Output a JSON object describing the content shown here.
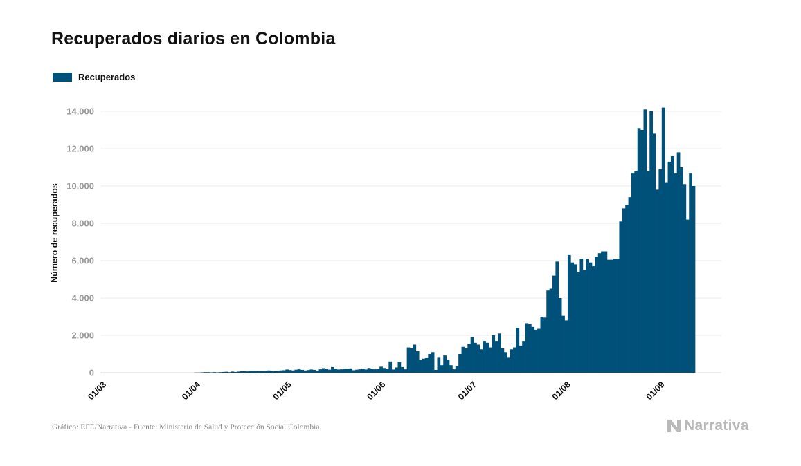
{
  "header": {
    "title": "Recuperados diarios en Colombia"
  },
  "legend": {
    "label": "Recuperados",
    "color": "#00517a"
  },
  "footer": {
    "source": "Gráfico: EFE/Narrativa - Fuente: Ministerio de Salud y Protección Social Colombia",
    "brand": "Narrativa",
    "brand_icon": "narrativa-logo-icon"
  },
  "chart_data": {
    "type": "bar",
    "title": "Recuperados diarios en Colombia",
    "xlabel": "",
    "ylabel": "Número de recuperados",
    "x_start": "2020-03-01",
    "ylim": [
      0,
      14000
    ],
    "y_ticks": [
      0,
      2000,
      4000,
      6000,
      8000,
      10000,
      12000,
      14000
    ],
    "y_tick_labels": [
      "0",
      "2.000",
      "4.000",
      "6.000",
      "8.000",
      "10.000",
      "12.000",
      "14.000"
    ],
    "x_ticks": [
      {
        "label": "01/03",
        "date": "2020-03-01"
      },
      {
        "label": "01/04",
        "date": "2020-04-01"
      },
      {
        "label": "01/05",
        "date": "2020-05-01"
      },
      {
        "label": "01/06",
        "date": "2020-06-01"
      },
      {
        "label": "01/07",
        "date": "2020-07-01"
      },
      {
        "label": "01/08",
        "date": "2020-08-01"
      },
      {
        "label": "01/09",
        "date": "2020-09-01"
      }
    ],
    "grid": true,
    "legend_position": "top-left",
    "series": [
      {
        "name": "Recuperados",
        "color": "#00517a",
        "values": [
          0,
          0,
          0,
          0,
          0,
          0,
          0,
          0,
          0,
          0,
          0,
          0,
          0,
          0,
          0,
          0,
          0,
          0,
          0,
          0,
          0,
          0,
          0,
          0,
          0,
          0,
          0,
          0,
          0,
          0,
          0,
          10,
          10,
          20,
          30,
          30,
          20,
          30,
          20,
          30,
          40,
          50,
          30,
          60,
          40,
          60,
          80,
          90,
          70,
          110,
          100,
          100,
          90,
          80,
          100,
          120,
          90,
          80,
          100,
          120,
          130,
          170,
          140,
          120,
          160,
          180,
          150,
          120,
          140,
          170,
          150,
          110,
          180,
          240,
          200,
          160,
          300,
          200,
          170,
          180,
          220,
          200,
          230,
          130,
          160,
          180,
          220,
          170,
          250,
          210,
          180,
          200,
          320,
          250,
          220,
          600,
          170,
          280,
          560,
          300,
          180,
          1350,
          1300,
          1500,
          1150,
          700,
          750,
          780,
          1000,
          1100,
          150,
          800,
          400,
          920,
          700,
          400,
          180,
          350,
          1000,
          1380,
          1300,
          1550,
          1900,
          1600,
          1500,
          1250,
          1700,
          1600,
          1350,
          2000,
          1700,
          2100,
          1300,
          1100,
          800,
          1250,
          1350,
          2400,
          1450,
          1700,
          2650,
          2600,
          2450,
          2300,
          2350,
          3000,
          2950,
          4400,
          4500,
          5200,
          5950,
          4000,
          3050,
          2800,
          6300,
          5900,
          5800,
          5400,
          6100,
          5500,
          6100,
          5900,
          5700,
          6200,
          6400,
          6500,
          6500,
          6050,
          6050,
          6100,
          6100,
          8100,
          8800,
          9000,
          9400,
          10700,
          10800,
          13100,
          13000,
          14100,
          10800,
          14000,
          12800,
          9800,
          10900,
          14200,
          10200,
          11300,
          11600,
          10700,
          11800,
          11000,
          10100,
          8200,
          10700,
          10000
        ]
      }
    ]
  }
}
